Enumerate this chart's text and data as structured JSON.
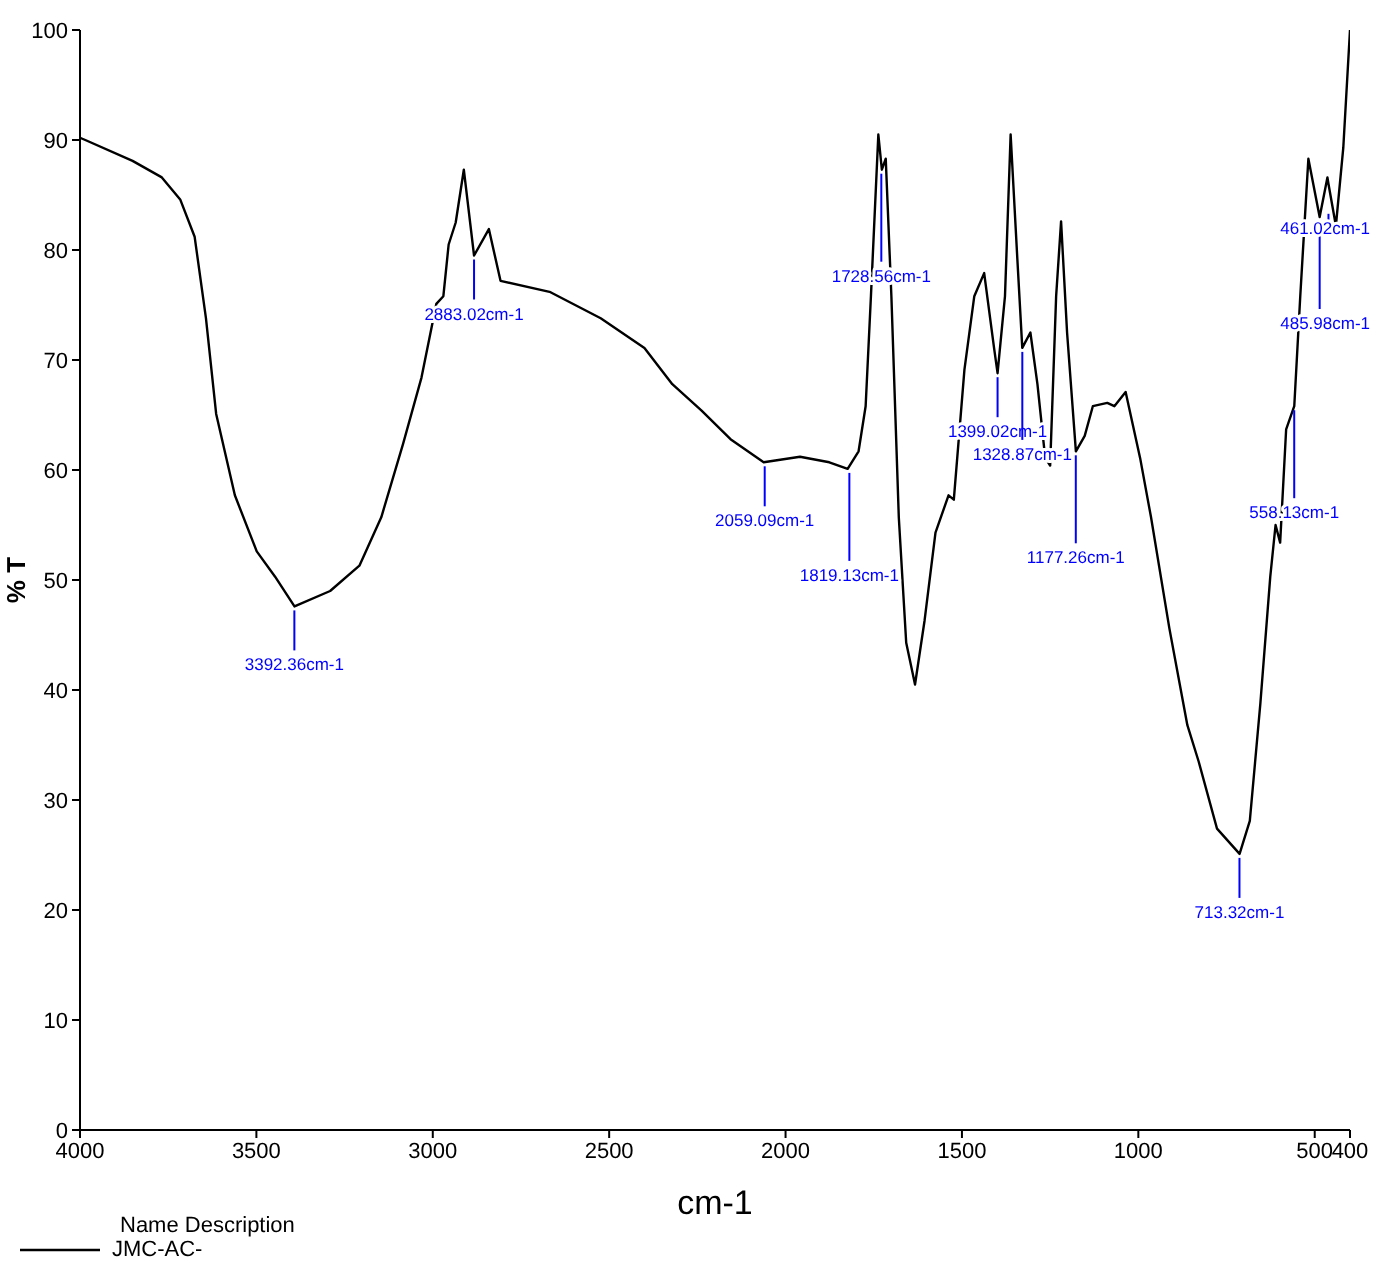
{
  "chart_data": {
    "type": "line",
    "xlabel": "cm-1",
    "ylabel": "% T",
    "legend_title": "Name Description",
    "legend": "bottom left",
    "grid": false,
    "marker": "none",
    "line_style": "solid",
    "xlim": [
      4000,
      400
    ],
    "xticks": [
      4000,
      3500,
      3000,
      2500,
      2000,
      1500,
      1000,
      500,
      400
    ],
    "ylim": [
      0,
      100
    ],
    "yticks": [
      0,
      10,
      20,
      30,
      40,
      50,
      60,
      70,
      80,
      90,
      100
    ],
    "series": [
      {
        "name": "JMC-AC-",
        "color": "#000000",
        "x": [
          4000,
          3985,
          3851,
          3768,
          3716,
          3675,
          3643,
          3614,
          3561,
          3499,
          3447,
          3392,
          3291,
          3208,
          3146,
          3084,
          3032,
          2990,
          2970,
          2955,
          2935,
          2912,
          2883,
          2841,
          2808,
          2669,
          2524,
          2400,
          2321,
          2238,
          2156,
          2062,
          1959,
          1876,
          1824,
          1793,
          1773,
          1758,
          1737,
          1727,
          1716,
          1700,
          1679,
          1658,
          1633,
          1606,
          1575,
          1538,
          1523,
          1493,
          1465,
          1437,
          1409,
          1399,
          1378,
          1362,
          1343,
          1329,
          1306,
          1286,
          1264,
          1250,
          1233,
          1219,
          1202,
          1177,
          1152,
          1129,
          1088,
          1068,
          1036,
          995,
          964,
          912,
          861,
          829,
          777,
          713,
          684,
          654,
          626,
          611,
          598,
          581,
          558,
          541,
          518,
          486,
          464,
          461,
          440,
          419,
          400
        ],
        "values": [
          90.2,
          90.0,
          88.1,
          86.6,
          84.6,
          81.2,
          73.8,
          65.1,
          57.7,
          52.6,
          50.3,
          47.6,
          49.0,
          51.3,
          55.7,
          62.4,
          68.4,
          75.1,
          75.8,
          80.5,
          82.5,
          87.3,
          79.5,
          81.9,
          77.2,
          76.2,
          73.8,
          71.1,
          67.8,
          65.4,
          62.8,
          60.7,
          61.2,
          60.7,
          60.1,
          61.7,
          65.8,
          75.8,
          90.5,
          87.3,
          88.3,
          75.8,
          55.7,
          44.3,
          40.5,
          46.3,
          54.3,
          57.7,
          57.3,
          69.1,
          75.8,
          77.9,
          71.1,
          68.8,
          75.8,
          90.5,
          79.2,
          71.1,
          72.5,
          67.8,
          61.1,
          60.4,
          75.8,
          82.6,
          72.5,
          61.7,
          63.1,
          65.8,
          66.1,
          65.8,
          67.1,
          61.1,
          55.7,
          45.6,
          36.8,
          33.5,
          27.4,
          25.1,
          28.1,
          38.8,
          50.3,
          55.0,
          53.4,
          63.7,
          65.8,
          75.8,
          88.3,
          83.0,
          86.6,
          86.0,
          82.2,
          89.3,
          100
        ]
      }
    ],
    "annotations": [
      {
        "text": "3392.36cm-1",
        "x": 3392.36,
        "y": 47.6
      },
      {
        "text": "2883.02cm-1",
        "x": 2883.02,
        "y": 79.5
      },
      {
        "text": "2059.09cm-1",
        "x": 2059.09,
        "y": 60.7
      },
      {
        "text": "1819.13cm-1",
        "x": 1819.13,
        "y": 60.1
      },
      {
        "text": "1728.56cm-1",
        "x": 1728.56,
        "y": 87.3
      },
      {
        "text": "1399.02cm-1",
        "x": 1399.02,
        "y": 68.8
      },
      {
        "text": "1328.87cm-1",
        "x": 1328.87,
        "y": 71.1
      },
      {
        "text": "1177.26cm-1",
        "x": 1177.26,
        "y": 61.7
      },
      {
        "text": "713.32cm-1",
        "x": 713.32,
        "y": 25.1
      },
      {
        "text": "558.13cm-1",
        "x": 558.13,
        "y": 65.8
      },
      {
        "text": "485.98cm-1",
        "x": 485.98,
        "y": 83.0
      },
      {
        "text": "461.02cm-1",
        "x": 461.02,
        "y": 82.2
      }
    ]
  }
}
